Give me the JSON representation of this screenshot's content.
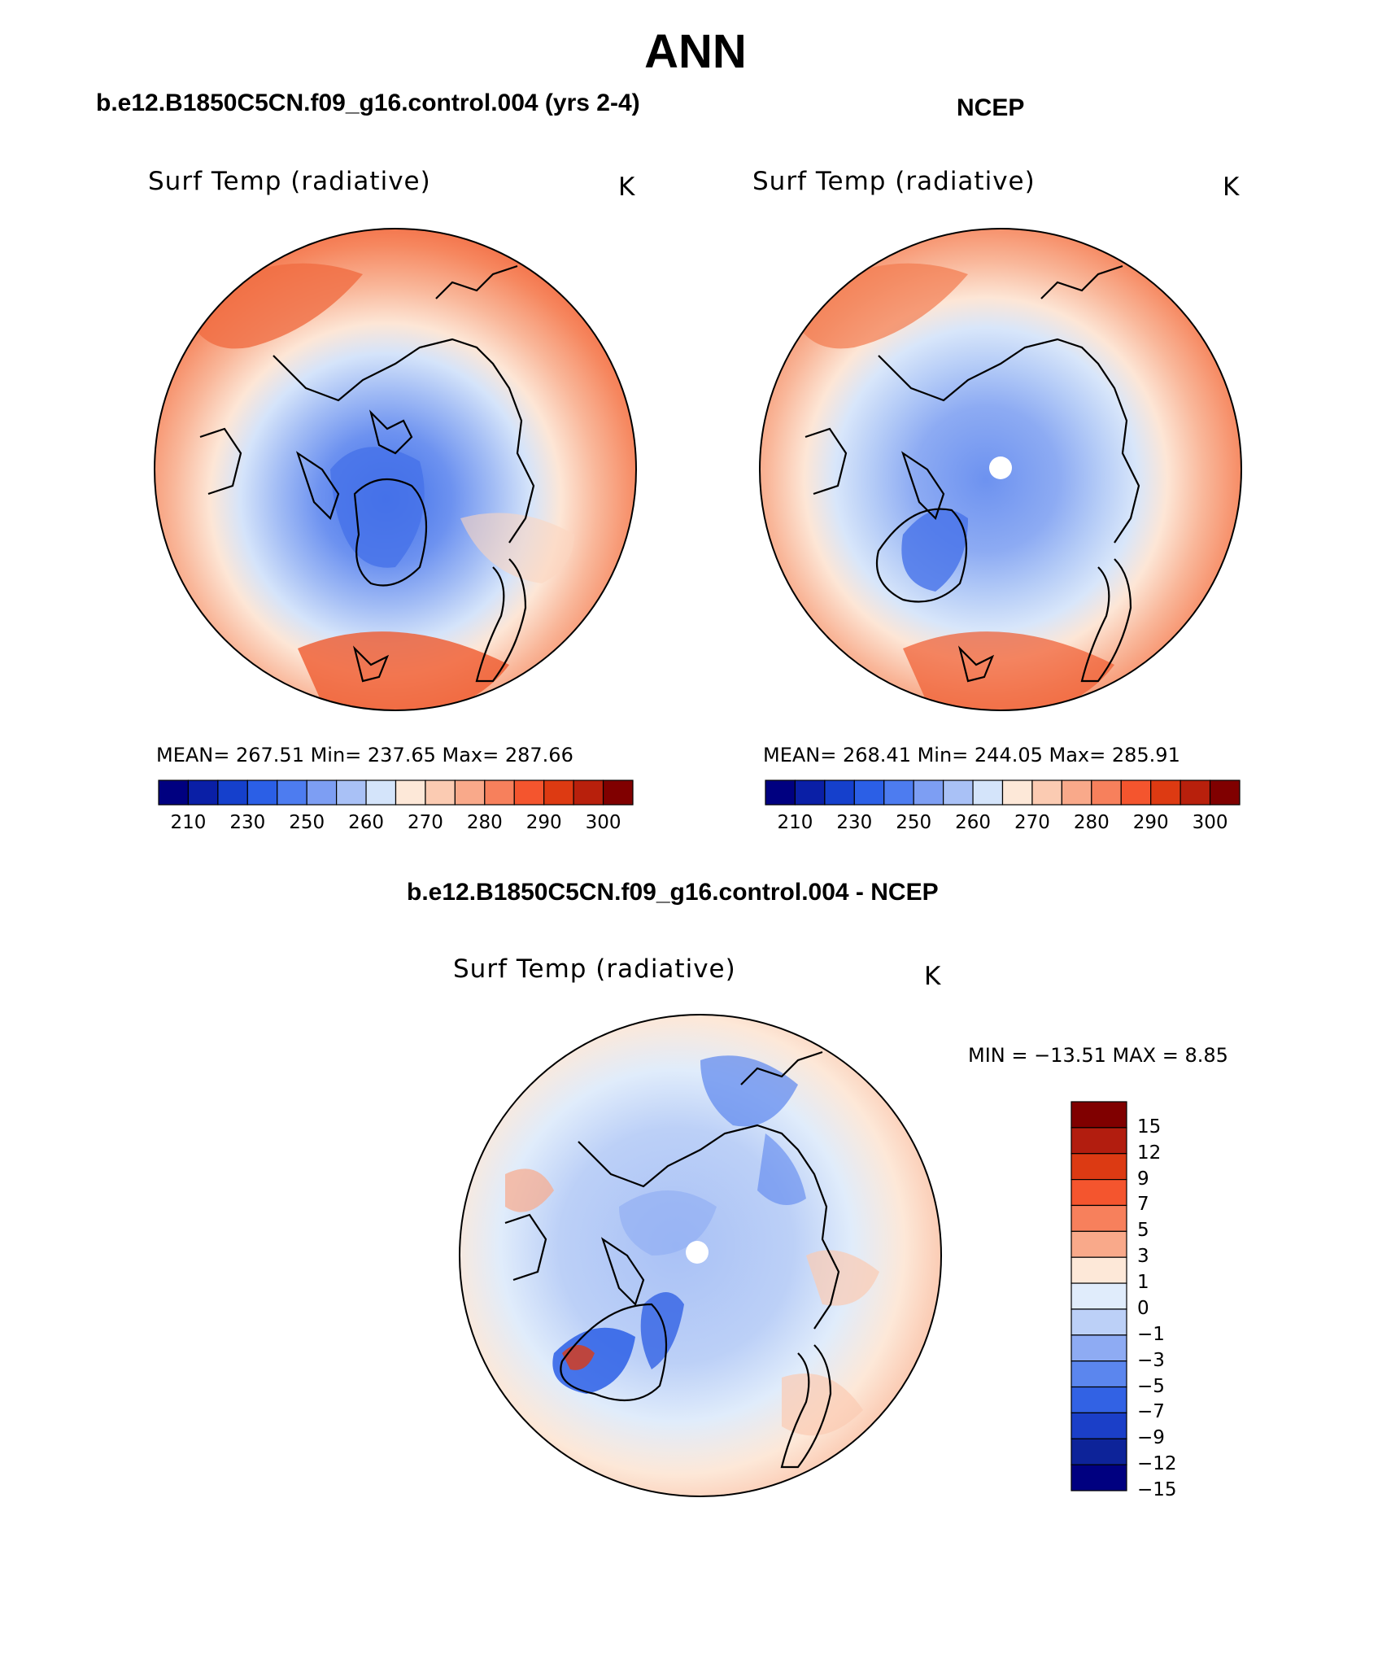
{
  "title": "ANN",
  "panels": [
    {
      "case_title": "b.e12.B1850C5CN.f09_g16.control.004 (yrs 2-4)",
      "var_title": "Surf Temp (radiative)",
      "units": "K",
      "stats": "MEAN= 267.51   Min= 237.65   Max= 287.66",
      "has_hole": false
    },
    {
      "case_title": "NCEP",
      "var_title": "Surf Temp (radiative)",
      "units": "K",
      "stats": "MEAN= 268.41   Min= 244.05   Max= 285.91",
      "has_hole": true
    }
  ],
  "diff_panel": {
    "case_title": "b.e12.B1850C5CN.f09_g16.control.004 - NCEP",
    "var_title": "Surf Temp (radiative)",
    "units": "K",
    "minmax": "MIN = −13.51 MAX =    8.85"
  },
  "colorbar_abs": {
    "colors": [
      "#000080",
      "#0a1fa6",
      "#1540cc",
      "#2b5fe6",
      "#4d7cf0",
      "#7d9ef3",
      "#a9c1f6",
      "#d4e4fa",
      "#fde8d8",
      "#fbcbb2",
      "#f9a98a",
      "#f7805c",
      "#f4552e",
      "#dd3a12",
      "#b8200c",
      "#800000"
    ],
    "labels": [
      "210",
      "230",
      "250",
      "260",
      "270",
      "280",
      "290",
      "300"
    ]
  },
  "colorbar_diff": {
    "colors": [
      "#800000",
      "#b21d0f",
      "#dc3a13",
      "#f4552e",
      "#f7805c",
      "#f9a98a",
      "#fde8d8",
      "#e0ecfb",
      "#bcd0f7",
      "#8eabf3",
      "#5b86ee",
      "#3262e4",
      "#1b3fc8",
      "#0d2399",
      "#000080"
    ],
    "labels": [
      "15",
      "12",
      "9",
      "7",
      "5",
      "3",
      "1",
      "0",
      "−1",
      "−3",
      "−5",
      "−7",
      "−9",
      "−12",
      "−15"
    ]
  }
}
